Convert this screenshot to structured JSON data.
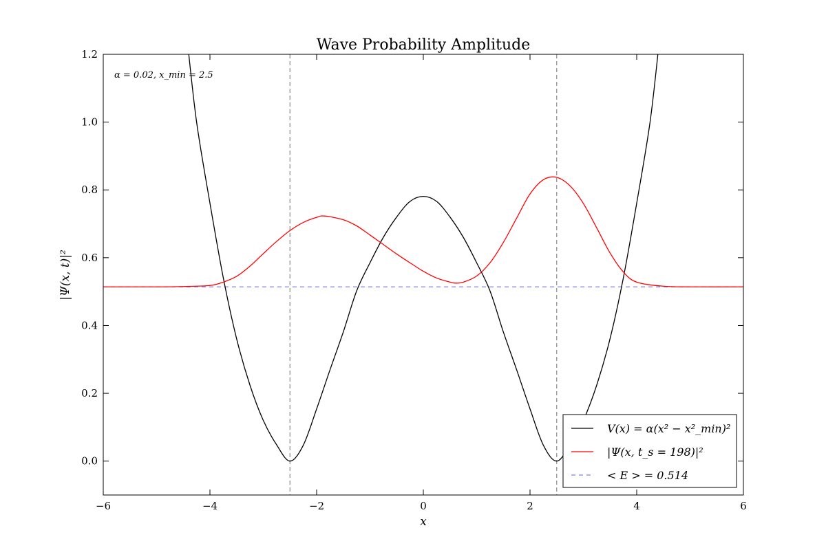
{
  "chart_data": {
    "type": "line",
    "title": "Wave Probability Amplitude",
    "xlabel": "x",
    "ylabel": "|Ψ(x, t)|²",
    "xlim": [
      -6,
      6
    ],
    "ylim": [
      -0.1,
      1.2
    ],
    "xticks": [
      -6,
      -4,
      -2,
      0,
      2,
      4,
      6
    ],
    "xtick_labels": [
      "−6",
      "−4",
      "−2",
      "0",
      "2",
      "4",
      "6"
    ],
    "yticks": [
      0.0,
      0.2,
      0.4,
      0.6,
      0.8,
      1.0,
      1.2
    ],
    "ytick_labels": [
      "0.0",
      "0.2",
      "0.4",
      "0.6",
      "0.8",
      "1.0",
      "1.2"
    ],
    "grid": false,
    "annotation": "α = 0.02, x_min = 2.5",
    "vertical_lines": [
      -2.5,
      2.5
    ],
    "legend_position": "lower-right",
    "series": [
      {
        "name": "V(x) = α(x² − x²_min)²",
        "color": "#000000",
        "style": "solid",
        "x": [
          -4.42,
          -4.25,
          -4.0,
          -3.75,
          -3.5,
          -3.25,
          -3.0,
          -2.75,
          -2.5,
          -2.25,
          -2.0,
          -1.75,
          -1.5,
          -1.25,
          -1.0,
          -0.75,
          -0.5,
          -0.25,
          0.0,
          0.25,
          0.5,
          0.75,
          1.0,
          1.25,
          1.5,
          1.75,
          2.0,
          2.25,
          2.5,
          2.75,
          3.0,
          3.25,
          3.5,
          3.75,
          4.0,
          4.25,
          4.42
        ],
        "values": [
          1.234,
          1.0,
          0.761,
          0.541,
          0.361,
          0.224,
          0.12,
          0.048,
          0.0,
          0.047,
          0.154,
          0.269,
          0.381,
          0.502,
          0.585,
          0.66,
          0.72,
          0.766,
          0.781,
          0.766,
          0.72,
          0.66,
          0.585,
          0.502,
          0.381,
          0.269,
          0.154,
          0.047,
          0.0,
          0.048,
          0.12,
          0.224,
          0.361,
          0.541,
          0.761,
          1.0,
          1.234
        ]
      },
      {
        "name": "|Ψ(x, t_s = 198)|²",
        "color": "#ff0000",
        "style": "solid",
        "x": [
          -6.0,
          -5.0,
          -4.5,
          -4.0,
          -3.75,
          -3.5,
          -3.25,
          -3.0,
          -2.75,
          -2.5,
          -2.25,
          -2.0,
          -1.85,
          -1.5,
          -1.25,
          -1.0,
          -0.75,
          -0.5,
          -0.25,
          0.0,
          0.25,
          0.5,
          0.6,
          0.75,
          1.0,
          1.25,
          1.5,
          1.75,
          2.0,
          2.25,
          2.5,
          2.75,
          3.0,
          3.25,
          3.5,
          3.75,
          4.0,
          4.5,
          5.0,
          6.0
        ],
        "values": [
          0.514,
          0.514,
          0.515,
          0.518,
          0.528,
          0.545,
          0.575,
          0.612,
          0.648,
          0.68,
          0.704,
          0.719,
          0.723,
          0.712,
          0.694,
          0.667,
          0.639,
          0.611,
          0.585,
          0.56,
          0.54,
          0.528,
          0.525,
          0.528,
          0.546,
          0.585,
          0.645,
          0.717,
          0.788,
          0.83,
          0.837,
          0.812,
          0.76,
          0.688,
          0.614,
          0.558,
          0.528,
          0.516,
          0.514,
          0.514
        ]
      },
      {
        "name": "< E > = 0.514",
        "color": "#8080e0",
        "style": "dashed",
        "x": [
          -6,
          6
        ],
        "values": [
          0.514,
          0.514
        ]
      }
    ]
  }
}
